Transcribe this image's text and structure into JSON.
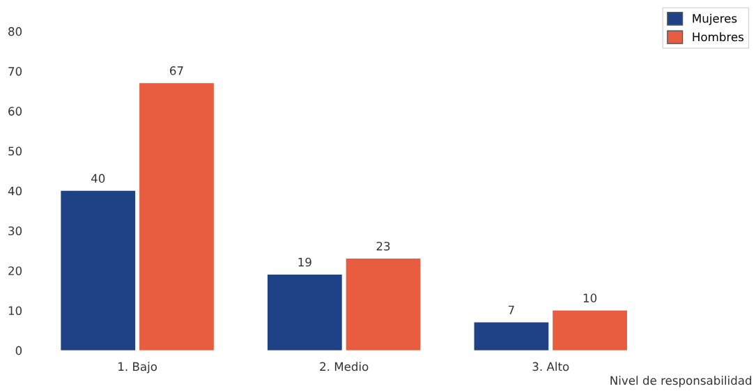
{
  "chart_data": {
    "type": "bar",
    "xlabel": "Nivel de responsabilidad",
    "categories": [
      "1. Bajo",
      "2. Medio",
      "3. Alto"
    ],
    "series": [
      {
        "name": "Mujeres",
        "color": "#1f4287",
        "values": [
          40,
          19,
          7
        ]
      },
      {
        "name": "Hombres",
        "color": "#e85d40",
        "values": [
          67,
          23,
          10
        ]
      }
    ],
    "ylim": [
      0,
      80
    ],
    "yticks": [
      0,
      10,
      20,
      30,
      40,
      50,
      60,
      70,
      80
    ],
    "data_labels": true,
    "grid": false,
    "legend": "top right"
  }
}
